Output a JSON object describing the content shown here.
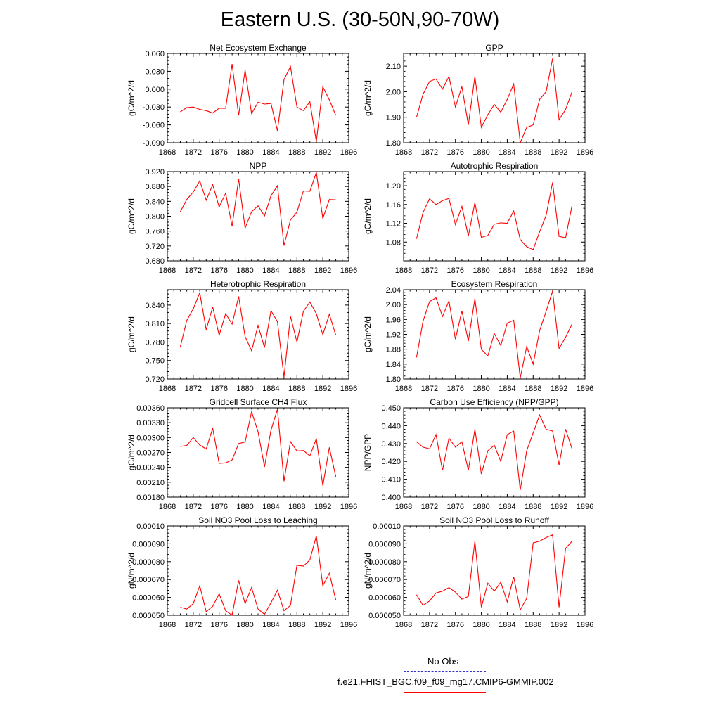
{
  "title": "Eastern U.S. (30-50N,90-70W)",
  "line_color": "#ff0000",
  "obs_color": "#3333cc",
  "legend": {
    "obs_label": "No Obs",
    "case_label": "f.e21.FHIST_BGC.f09_f09_mg17.CMIP6-GMMIP.002"
  },
  "chart_data": [
    {
      "type": "line",
      "title": "Net Ecosystem Exchange",
      "ylabel": "gC/m^2/d",
      "xlim": [
        1868,
        1896
      ],
      "ylim": [
        -0.09,
        0.06
      ],
      "xticks": [
        "1868",
        "1872",
        "1876",
        "1880",
        "1884",
        "1888",
        "1892",
        "1896"
      ],
      "yticks": [
        "-0.090",
        "-0.060",
        "-0.030",
        "0.000",
        "0.030",
        "0.060"
      ],
      "x": [
        1870,
        1871,
        1872,
        1873,
        1874,
        1875,
        1876,
        1877,
        1878,
        1879,
        1880,
        1881,
        1882,
        1883,
        1884,
        1885,
        1886,
        1887,
        1888,
        1889,
        1890,
        1891,
        1892,
        1893,
        1894
      ],
      "values": [
        -0.038,
        -0.031,
        -0.03,
        -0.034,
        -0.036,
        -0.04,
        -0.032,
        -0.032,
        0.042,
        -0.044,
        0.032,
        -0.041,
        -0.022,
        -0.025,
        -0.024,
        -0.07,
        0.016,
        0.038,
        -0.03,
        -0.036,
        -0.021,
        -0.088,
        0.004,
        -0.018,
        -0.044
      ]
    },
    {
      "type": "line",
      "title": "GPP",
      "ylabel": "gC/m^2/d",
      "xlim": [
        1868,
        1896
      ],
      "ylim": [
        1.8,
        2.15
      ],
      "xticks": [
        "1868",
        "1872",
        "1876",
        "1880",
        "1884",
        "1888",
        "1892",
        "1896"
      ],
      "yticks": [
        "1.80",
        "1.90",
        "2.00",
        "2.10"
      ],
      "x": [
        1870,
        1871,
        1872,
        1873,
        1874,
        1875,
        1876,
        1877,
        1878,
        1879,
        1880,
        1881,
        1882,
        1883,
        1884,
        1885,
        1886,
        1887,
        1888,
        1889,
        1890,
        1891,
        1892,
        1893,
        1894
      ],
      "values": [
        1.9,
        1.99,
        2.04,
        2.05,
        2.01,
        2.06,
        1.94,
        2.02,
        1.87,
        2.06,
        1.86,
        1.91,
        1.95,
        1.92,
        1.97,
        2.03,
        1.8,
        1.86,
        1.87,
        1.97,
        2.0,
        2.13,
        1.89,
        1.93,
        2.0
      ]
    },
    {
      "type": "line",
      "title": "NPP",
      "ylabel": "gC/m^2/d",
      "xlim": [
        1868,
        1896
      ],
      "ylim": [
        0.68,
        0.92
      ],
      "xticks": [
        "1868",
        "1872",
        "1876",
        "1880",
        "1884",
        "1888",
        "1892",
        "1896"
      ],
      "yticks": [
        "0.680",
        "0.720",
        "0.760",
        "0.800",
        "0.840",
        "0.880",
        "0.920"
      ],
      "x": [
        1870,
        1871,
        1872,
        1873,
        1874,
        1875,
        1876,
        1877,
        1878,
        1879,
        1880,
        1881,
        1882,
        1883,
        1884,
        1885,
        1886,
        1887,
        1888,
        1889,
        1890,
        1891,
        1892,
        1893,
        1894
      ],
      "values": [
        0.812,
        0.845,
        0.865,
        0.895,
        0.843,
        0.885,
        0.825,
        0.862,
        0.773,
        0.9,
        0.768,
        0.812,
        0.828,
        0.801,
        0.855,
        0.882,
        0.721,
        0.79,
        0.811,
        0.868,
        0.867,
        0.918,
        0.794,
        0.845,
        0.844
      ]
    },
    {
      "type": "line",
      "title": "Autotrophic Respiration",
      "ylabel": "gC/m^2/d",
      "xlim": [
        1868,
        1896
      ],
      "ylim": [
        1.04,
        1.23
      ],
      "xticks": [
        "1868",
        "1872",
        "1876",
        "1880",
        "1884",
        "1888",
        "1892",
        "1896"
      ],
      "yticks": [
        "1.08",
        "1.12",
        "1.16",
        "1.20"
      ],
      "x": [
        1870,
        1871,
        1872,
        1873,
        1874,
        1875,
        1876,
        1877,
        1878,
        1879,
        1880,
        1881,
        1882,
        1883,
        1884,
        1885,
        1886,
        1887,
        1888,
        1889,
        1890,
        1891,
        1892,
        1893,
        1894
      ],
      "values": [
        1.087,
        1.143,
        1.172,
        1.16,
        1.168,
        1.173,
        1.117,
        1.156,
        1.093,
        1.164,
        1.09,
        1.094,
        1.118,
        1.121,
        1.12,
        1.146,
        1.085,
        1.07,
        1.064,
        1.102,
        1.137,
        1.207,
        1.092,
        1.089,
        1.158
      ]
    },
    {
      "type": "line",
      "title": "Heterotrophic Respiration",
      "ylabel": "gC/m^2/d",
      "xlim": [
        1868,
        1896
      ],
      "ylim": [
        0.72,
        0.865
      ],
      "xticks": [
        "1868",
        "1872",
        "1876",
        "1880",
        "1884",
        "1888",
        "1892",
        "1896"
      ],
      "yticks": [
        "0.720",
        "0.750",
        "0.780",
        "0.810",
        "0.840"
      ],
      "x": [
        1870,
        1871,
        1872,
        1873,
        1874,
        1875,
        1876,
        1877,
        1878,
        1879,
        1880,
        1881,
        1882,
        1883,
        1884,
        1885,
        1886,
        1887,
        1888,
        1889,
        1890,
        1891,
        1892,
        1893,
        1894
      ],
      "values": [
        0.772,
        0.815,
        0.834,
        0.86,
        0.8,
        0.837,
        0.791,
        0.826,
        0.809,
        0.854,
        0.789,
        0.766,
        0.807,
        0.771,
        0.831,
        0.813,
        0.723,
        0.822,
        0.78,
        0.83,
        0.845,
        0.826,
        0.792,
        0.825,
        0.791
      ]
    },
    {
      "type": "line",
      "title": "Ecosystem Respiration",
      "ylabel": "gC/m^2/d",
      "xlim": [
        1868,
        1896
      ],
      "ylim": [
        1.8,
        2.04
      ],
      "xticks": [
        "1868",
        "1872",
        "1876",
        "1880",
        "1884",
        "1888",
        "1892",
        "1896"
      ],
      "yticks": [
        "1.80",
        "1.84",
        "1.88",
        "1.92",
        "1.96",
        "2.00",
        "2.04"
      ],
      "x": [
        1870,
        1871,
        1872,
        1873,
        1874,
        1875,
        1876,
        1877,
        1878,
        1879,
        1880,
        1881,
        1882,
        1883,
        1884,
        1885,
        1886,
        1887,
        1888,
        1889,
        1890,
        1891,
        1892,
        1893,
        1894
      ],
      "values": [
        1.858,
        1.955,
        2.008,
        2.018,
        1.968,
        2.01,
        1.907,
        1.983,
        1.902,
        2.016,
        1.88,
        1.862,
        1.922,
        1.89,
        1.95,
        1.958,
        1.803,
        1.887,
        1.84,
        1.93,
        1.982,
        2.036,
        1.882,
        1.912,
        1.948
      ]
    },
    {
      "type": "line",
      "title": "Gridcell Surface CH4 Flux",
      "ylabel": "gC/m^2/d",
      "xlim": [
        1868,
        1896
      ],
      "ylim": [
        0.0018,
        0.0036
      ],
      "xticks": [
        "1868",
        "1872",
        "1876",
        "1880",
        "1884",
        "1888",
        "1892",
        "1896"
      ],
      "yticks": [
        "0.00180",
        "0.00210",
        "0.00240",
        "0.00270",
        "0.00300",
        "0.00330",
        "0.00360"
      ],
      "x": [
        1870,
        1871,
        1872,
        1873,
        1874,
        1875,
        1876,
        1877,
        1878,
        1879,
        1880,
        1881,
        1882,
        1883,
        1884,
        1885,
        1886,
        1887,
        1888,
        1889,
        1890,
        1891,
        1892,
        1893,
        1894
      ],
      "values": [
        0.00282,
        0.00284,
        0.003,
        0.00285,
        0.00277,
        0.00319,
        0.00248,
        0.00249,
        0.00255,
        0.00288,
        0.00291,
        0.00352,
        0.00312,
        0.00241,
        0.00315,
        0.00357,
        0.00212,
        0.00292,
        0.00273,
        0.00274,
        0.00263,
        0.00298,
        0.00203,
        0.0028,
        0.00221
      ]
    },
    {
      "type": "line",
      "title": "Carbon Use Efficiency (NPP/GPP)",
      "ylabel": "NPP/GPP",
      "xlim": [
        1868,
        1896
      ],
      "ylim": [
        0.4,
        0.45
      ],
      "xticks": [
        "1868",
        "1872",
        "1876",
        "1880",
        "1884",
        "1888",
        "1892",
        "1896"
      ],
      "yticks": [
        "0.400",
        "0.410",
        "0.420",
        "0.430",
        "0.440",
        "0.450"
      ],
      "x": [
        1870,
        1871,
        1872,
        1873,
        1874,
        1875,
        1876,
        1877,
        1878,
        1879,
        1880,
        1881,
        1882,
        1883,
        1884,
        1885,
        1886,
        1887,
        1888,
        1889,
        1890,
        1891,
        1892,
        1893,
        1894
      ],
      "values": [
        0.431,
        0.428,
        0.427,
        0.435,
        0.415,
        0.433,
        0.428,
        0.431,
        0.415,
        0.438,
        0.413,
        0.426,
        0.429,
        0.42,
        0.435,
        0.437,
        0.404,
        0.426,
        0.436,
        0.446,
        0.438,
        0.437,
        0.418,
        0.438,
        0.427
      ]
    },
    {
      "type": "line",
      "title": "Soil NO3 Pool Loss to Leaching",
      "ylabel": "gN/m^2/d",
      "xlim": [
        1868,
        1896
      ],
      "ylim": [
        5e-05,
        0.0001
      ],
      "xticks": [
        "1868",
        "1872",
        "1876",
        "1880",
        "1884",
        "1888",
        "1892",
        "1896"
      ],
      "yticks": [
        "0.000050",
        "0.000060",
        "0.000070",
        "0.000080",
        "0.000090",
        "0.00010"
      ],
      "x": [
        1870,
        1871,
        1872,
        1873,
        1874,
        1875,
        1876,
        1877,
        1878,
        1879,
        1880,
        1881,
        1882,
        1883,
        1884,
        1885,
        1886,
        1887,
        1888,
        1889,
        1890,
        1891,
        1892,
        1893,
        1894
      ],
      "values": [
        5.45e-05,
        5.35e-05,
        5.65e-05,
        6.65e-05,
        5.2e-05,
        5.5e-05,
        6.2e-05,
        5.25e-05,
        5e-05,
        6.95e-05,
        5.65e-05,
        6.55e-05,
        5.35e-05,
        5.05e-05,
        5.7e-05,
        6.4e-05,
        5.25e-05,
        5.55e-05,
        7.8e-05,
        7.75e-05,
        8.1e-05,
        9.45e-05,
        6.65e-05,
        7.35e-05,
        5.85e-05
      ]
    },
    {
      "type": "line",
      "title": "Soil NO3 Pool Loss to Runoff",
      "ylabel": "gN/m^2/d",
      "xlim": [
        1868,
        1896
      ],
      "ylim": [
        5e-05,
        0.0001
      ],
      "xticks": [
        "1868",
        "1872",
        "1876",
        "1880",
        "1884",
        "1888",
        "1892",
        "1896"
      ],
      "yticks": [
        "0.000050",
        "0.000060",
        "0.000070",
        "0.000080",
        "0.000090",
        "0.00010"
      ],
      "x": [
        1870,
        1871,
        1872,
        1873,
        1874,
        1875,
        1876,
        1877,
        1878,
        1879,
        1880,
        1881,
        1882,
        1883,
        1884,
        1885,
        1886,
        1887,
        1888,
        1889,
        1890,
        1891,
        1892,
        1893,
        1894
      ],
      "values": [
        6.15e-05,
        5.55e-05,
        5.8e-05,
        6.25e-05,
        6.35e-05,
        6.55e-05,
        6.3e-05,
        5.9e-05,
        6.05e-05,
        9.15e-05,
        5.45e-05,
        6.8e-05,
        6.35e-05,
        6.85e-05,
        5.75e-05,
        7.15e-05,
        5.3e-05,
        5.95e-05,
        9.05e-05,
        9.15e-05,
        9.35e-05,
        9.5e-05,
        5.45e-05,
        8.75e-05,
        9.15e-05
      ]
    }
  ]
}
